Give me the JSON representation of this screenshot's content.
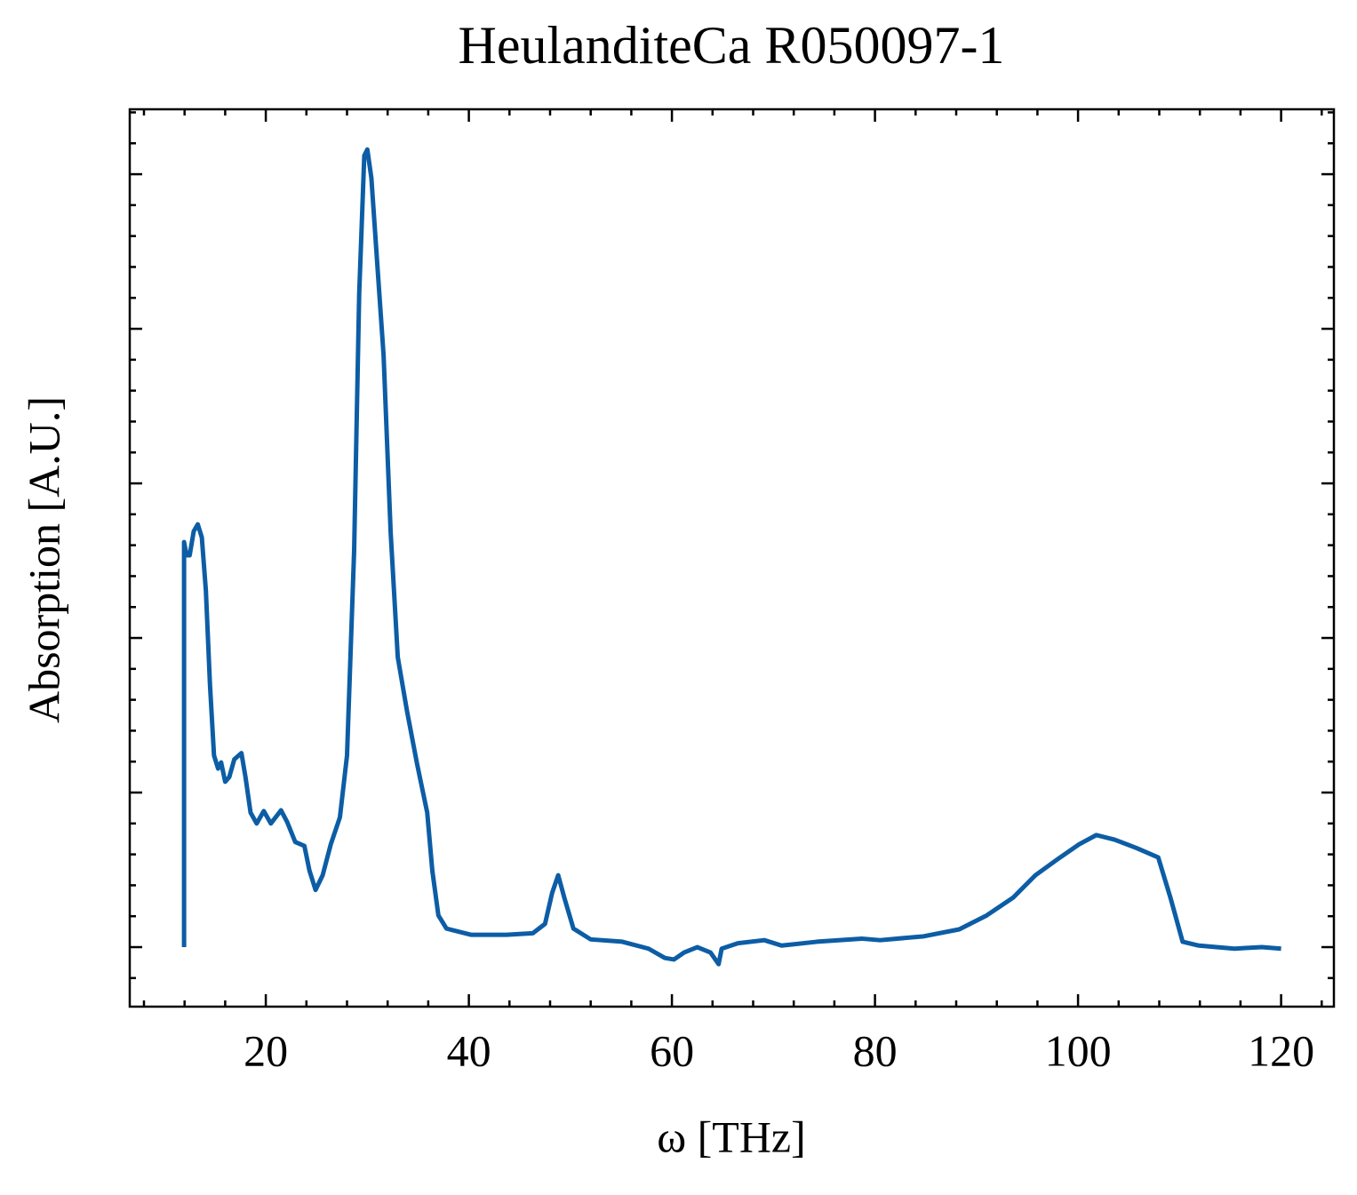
{
  "chart_data": {
    "type": "line",
    "title": "HeulanditeCa R050097-1",
    "xlabel": "ω [THz]",
    "ylabel": "Absorption [A.U.]",
    "color": "#0c5da5",
    "xlim": [
      6.6,
      125.2
    ],
    "xticks": [
      20,
      40,
      60,
      80,
      100,
      120
    ],
    "ylim": [
      -0.077,
      1.084
    ],
    "yticks": [
      0,
      0.2,
      0.4,
      0.6,
      0.8,
      1.0
    ],
    "x": [
      11.95,
      11.95,
      12.2,
      12.5,
      12.9,
      13.3,
      13.7,
      14.1,
      14.5,
      14.9,
      15.3,
      15.6,
      16.0,
      16.4,
      16.9,
      17.6,
      18.0,
      18.5,
      19.1,
      19.8,
      20.5,
      21.5,
      22.1,
      22.9,
      23.8,
      24.3,
      24.9,
      25.6,
      26.4,
      27.3,
      28.0,
      28.7,
      29.2,
      29.7,
      30.0,
      30.4,
      31.0,
      31.6,
      32.3,
      33.0,
      33.9,
      34.9,
      35.9,
      36.4,
      37.0,
      37.8,
      40.2,
      43.7,
      46.3,
      47.5,
      48.2,
      48.8,
      49.4,
      50.3,
      52.0,
      55.1,
      57.7,
      59.3,
      60.2,
      61.2,
      62.5,
      63.8,
      64.6,
      64.9,
      66.5,
      69.1,
      70.8,
      74.3,
      78.7,
      80.5,
      84.8,
      88.3,
      91.0,
      93.6,
      95.8,
      97.9,
      100.1,
      101.8,
      103.6,
      105.8,
      107.9,
      109.1,
      110.3,
      111.9,
      115.4,
      118.1,
      120.0
    ],
    "values": [
      0,
      0.524,
      0.507,
      0.507,
      0.538,
      0.547,
      0.53,
      0.461,
      0.34,
      0.248,
      0.231,
      0.239,
      0.214,
      0.22,
      0.243,
      0.251,
      0.22,
      0.174,
      0.16,
      0.176,
      0.16,
      0.177,
      0.162,
      0.136,
      0.131,
      0.099,
      0.074,
      0.093,
      0.133,
      0.168,
      0.248,
      0.513,
      0.846,
      1.024,
      1.032,
      0.995,
      0.88,
      0.766,
      0.536,
      0.375,
      0.306,
      0.237,
      0.174,
      0.099,
      0.041,
      0.024,
      0.016,
      0.016,
      0.018,
      0.03,
      0.07,
      0.093,
      0.064,
      0.024,
      0.01,
      0.007,
      -0.002,
      -0.014,
      -0.016,
      -0.007,
      0,
      -0.007,
      -0.022,
      -0.002,
      0.005,
      0.009,
      0.002,
      0.007,
      0.011,
      0.009,
      0.014,
      0.023,
      0.041,
      0.064,
      0.093,
      0.113,
      0.133,
      0.145,
      0.139,
      0.128,
      0.116,
      0.064,
      0.007,
      0.002,
      -0.002,
      0,
      -0.002
    ]
  }
}
